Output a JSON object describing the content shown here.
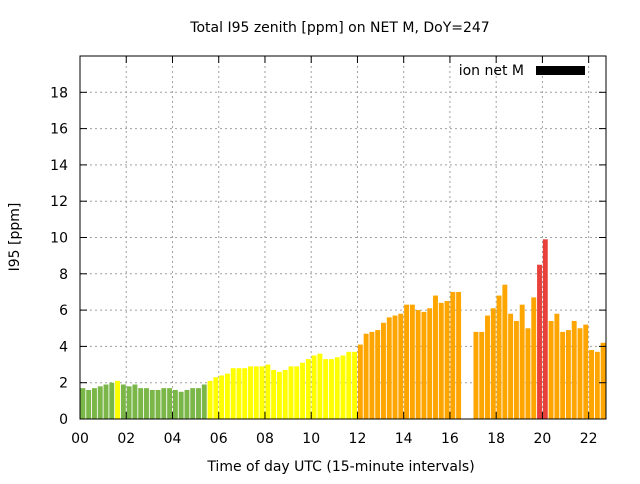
{
  "chart_data": {
    "type": "bar",
    "title": "Total I95 zenith [ppm] on NET M, DoY=247",
    "xlabel": "Time of day UTC (15-minute intervals)",
    "ylabel": "I95 [ppm]",
    "xlim": [
      0,
      22.75
    ],
    "ylim": [
      0,
      20
    ],
    "x_ticks": [
      "00",
      "02",
      "04",
      "06",
      "08",
      "10",
      "12",
      "14",
      "16",
      "18",
      "20",
      "22"
    ],
    "x_tick_values": [
      0,
      2,
      4,
      6,
      8,
      10,
      12,
      14,
      16,
      18,
      20,
      22
    ],
    "y_ticks": [
      0,
      2,
      4,
      6,
      8,
      10,
      12,
      14,
      16,
      18
    ],
    "grid": true,
    "legend": {
      "label": "ion net M",
      "color": "#000000",
      "position": "top-right"
    },
    "bar_interval_hours": 0.25,
    "color_levels": {
      "green": "#7ab648",
      "yellow": "#ffff00",
      "orange": "#ffa500",
      "red": "#e8413c"
    },
    "bars": [
      {
        "x": 0.0,
        "y": 1.7,
        "level": "green"
      },
      {
        "x": 0.25,
        "y": 1.6,
        "level": "green"
      },
      {
        "x": 0.5,
        "y": 1.7,
        "level": "green"
      },
      {
        "x": 0.75,
        "y": 1.8,
        "level": "green"
      },
      {
        "x": 1.0,
        "y": 1.9,
        "level": "green"
      },
      {
        "x": 1.25,
        "y": 2.0,
        "level": "green"
      },
      {
        "x": 1.5,
        "y": 2.1,
        "level": "yellow"
      },
      {
        "x": 1.75,
        "y": 1.9,
        "level": "green"
      },
      {
        "x": 2.0,
        "y": 1.8,
        "level": "green"
      },
      {
        "x": 2.25,
        "y": 1.9,
        "level": "green"
      },
      {
        "x": 2.5,
        "y": 1.7,
        "level": "green"
      },
      {
        "x": 2.75,
        "y": 1.7,
        "level": "green"
      },
      {
        "x": 3.0,
        "y": 1.6,
        "level": "green"
      },
      {
        "x": 3.25,
        "y": 1.6,
        "level": "green"
      },
      {
        "x": 3.5,
        "y": 1.7,
        "level": "green"
      },
      {
        "x": 3.75,
        "y": 1.7,
        "level": "green"
      },
      {
        "x": 4.0,
        "y": 1.6,
        "level": "green"
      },
      {
        "x": 4.25,
        "y": 1.5,
        "level": "green"
      },
      {
        "x": 4.5,
        "y": 1.6,
        "level": "green"
      },
      {
        "x": 4.75,
        "y": 1.7,
        "level": "green"
      },
      {
        "x": 5.0,
        "y": 1.7,
        "level": "green"
      },
      {
        "x": 5.25,
        "y": 1.9,
        "level": "green"
      },
      {
        "x": 5.5,
        "y": 2.1,
        "level": "yellow"
      },
      {
        "x": 5.75,
        "y": 2.3,
        "level": "yellow"
      },
      {
        "x": 6.0,
        "y": 2.4,
        "level": "yellow"
      },
      {
        "x": 6.25,
        "y": 2.5,
        "level": "yellow"
      },
      {
        "x": 6.5,
        "y": 2.8,
        "level": "yellow"
      },
      {
        "x": 6.75,
        "y": 2.8,
        "level": "yellow"
      },
      {
        "x": 7.0,
        "y": 2.8,
        "level": "yellow"
      },
      {
        "x": 7.25,
        "y": 2.9,
        "level": "yellow"
      },
      {
        "x": 7.5,
        "y": 2.9,
        "level": "yellow"
      },
      {
        "x": 7.75,
        "y": 2.9,
        "level": "yellow"
      },
      {
        "x": 8.0,
        "y": 3.0,
        "level": "yellow"
      },
      {
        "x": 8.25,
        "y": 2.7,
        "level": "yellow"
      },
      {
        "x": 8.5,
        "y": 2.6,
        "level": "yellow"
      },
      {
        "x": 8.75,
        "y": 2.7,
        "level": "yellow"
      },
      {
        "x": 9.0,
        "y": 2.9,
        "level": "yellow"
      },
      {
        "x": 9.25,
        "y": 2.9,
        "level": "yellow"
      },
      {
        "x": 9.5,
        "y": 3.1,
        "level": "yellow"
      },
      {
        "x": 9.75,
        "y": 3.3,
        "level": "yellow"
      },
      {
        "x": 10.0,
        "y": 3.5,
        "level": "yellow"
      },
      {
        "x": 10.25,
        "y": 3.6,
        "level": "yellow"
      },
      {
        "x": 10.5,
        "y": 3.3,
        "level": "yellow"
      },
      {
        "x": 10.75,
        "y": 3.3,
        "level": "yellow"
      },
      {
        "x": 11.0,
        "y": 3.4,
        "level": "yellow"
      },
      {
        "x": 11.25,
        "y": 3.5,
        "level": "yellow"
      },
      {
        "x": 11.5,
        "y": 3.7,
        "level": "yellow"
      },
      {
        "x": 11.75,
        "y": 3.7,
        "level": "yellow"
      },
      {
        "x": 12.0,
        "y": 4.1,
        "level": "orange"
      },
      {
        "x": 12.25,
        "y": 4.7,
        "level": "orange"
      },
      {
        "x": 12.5,
        "y": 4.8,
        "level": "orange"
      },
      {
        "x": 12.75,
        "y": 4.9,
        "level": "orange"
      },
      {
        "x": 13.0,
        "y": 5.3,
        "level": "orange"
      },
      {
        "x": 13.25,
        "y": 5.6,
        "level": "orange"
      },
      {
        "x": 13.5,
        "y": 5.7,
        "level": "orange"
      },
      {
        "x": 13.75,
        "y": 5.8,
        "level": "orange"
      },
      {
        "x": 14.0,
        "y": 6.3,
        "level": "orange"
      },
      {
        "x": 14.25,
        "y": 6.3,
        "level": "orange"
      },
      {
        "x": 14.5,
        "y": 6.0,
        "level": "orange"
      },
      {
        "x": 14.75,
        "y": 5.9,
        "level": "orange"
      },
      {
        "x": 15.0,
        "y": 6.1,
        "level": "orange"
      },
      {
        "x": 15.25,
        "y": 6.8,
        "level": "orange"
      },
      {
        "x": 15.5,
        "y": 6.4,
        "level": "orange"
      },
      {
        "x": 15.75,
        "y": 6.5,
        "level": "orange"
      },
      {
        "x": 16.0,
        "y": 7.0,
        "level": "orange"
      },
      {
        "x": 16.25,
        "y": 7.0,
        "level": "orange"
      },
      {
        "x": 17.0,
        "y": 4.8,
        "level": "orange"
      },
      {
        "x": 17.25,
        "y": 4.8,
        "level": "orange"
      },
      {
        "x": 17.5,
        "y": 5.7,
        "level": "orange"
      },
      {
        "x": 17.75,
        "y": 6.1,
        "level": "orange"
      },
      {
        "x": 18.0,
        "y": 6.8,
        "level": "orange"
      },
      {
        "x": 18.25,
        "y": 7.4,
        "level": "orange"
      },
      {
        "x": 18.5,
        "y": 5.8,
        "level": "orange"
      },
      {
        "x": 18.75,
        "y": 5.4,
        "level": "orange"
      },
      {
        "x": 19.0,
        "y": 6.3,
        "level": "orange"
      },
      {
        "x": 19.25,
        "y": 5.0,
        "level": "orange"
      },
      {
        "x": 19.5,
        "y": 6.7,
        "level": "orange"
      },
      {
        "x": 19.75,
        "y": 8.5,
        "level": "red"
      },
      {
        "x": 20.0,
        "y": 9.9,
        "level": "red"
      },
      {
        "x": 20.25,
        "y": 5.4,
        "level": "orange"
      },
      {
        "x": 20.5,
        "y": 5.8,
        "level": "orange"
      },
      {
        "x": 20.75,
        "y": 4.8,
        "level": "orange"
      },
      {
        "x": 21.0,
        "y": 4.9,
        "level": "orange"
      },
      {
        "x": 21.25,
        "y": 5.4,
        "level": "orange"
      },
      {
        "x": 21.5,
        "y": 5.0,
        "level": "orange"
      },
      {
        "x": 21.75,
        "y": 5.2,
        "level": "orange"
      },
      {
        "x": 22.0,
        "y": 3.8,
        "level": "orange"
      },
      {
        "x": 22.25,
        "y": 3.7,
        "level": "orange"
      },
      {
        "x": 22.5,
        "y": 4.2,
        "level": "orange"
      }
    ]
  }
}
